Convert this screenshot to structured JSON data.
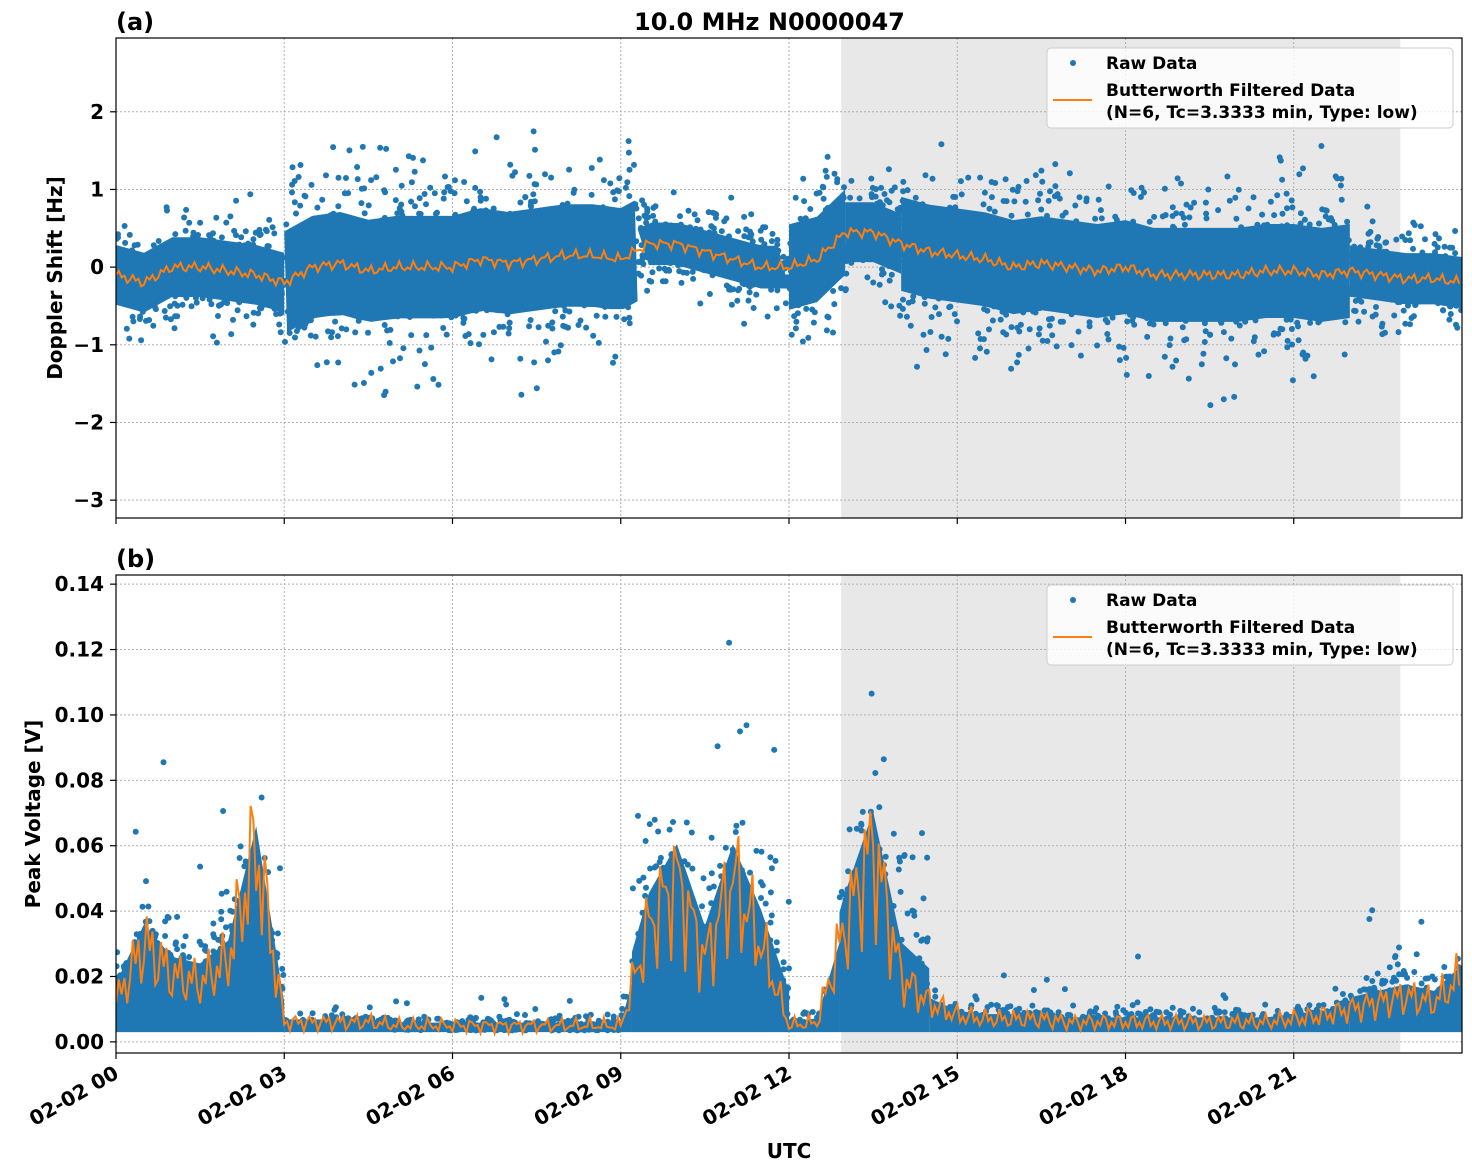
{
  "chart_data": [
    {
      "type": "scatter",
      "panel_label": "(a)",
      "title": "10.0 MHz N0000047",
      "xlabel": "",
      "ylabel": "Doppler Shift [Hz]",
      "xlim_hours": [
        0,
        24
      ],
      "ylim": [
        -3.23,
        2.95
      ],
      "yticks": [
        2,
        1,
        0,
        -1,
        -2,
        -3
      ],
      "ytick_labels": [
        "2",
        "1",
        "0",
        "−1",
        "−2",
        "−3"
      ],
      "grid": true,
      "shaded_region_hours": [
        12.93,
        22.9
      ],
      "legend_placement": "top-right",
      "legend": [
        "Raw Data",
        "Butterworth Filtered Data",
        "(N=6, Tc=3.3333 min, Type: low)"
      ],
      "raw_envelope": [
        {
          "from": 0,
          "to": 3,
          "spread": 0.7
        },
        {
          "from": 3,
          "to": 9.3,
          "spread": 1.2
        },
        {
          "from": 9.3,
          "to": 12,
          "spread": 0.5
        },
        {
          "from": 12,
          "to": 13,
          "spread": 1.0
        },
        {
          "from": 13,
          "to": 14,
          "spread": 0.7
        },
        {
          "from": 14,
          "to": 22,
          "spread": 1.1
        },
        {
          "from": 22,
          "to": 24,
          "spread": 0.6
        }
      ],
      "filtered_x_hours": [
        0,
        0.5,
        1,
        1.5,
        2,
        2.5,
        3,
        3.5,
        4,
        4.5,
        5,
        5.5,
        6,
        6.5,
        7,
        7.5,
        8,
        8.5,
        9,
        9.5,
        10,
        10.5,
        11,
        11.5,
        12,
        12.5,
        13,
        13.5,
        14,
        14.5,
        15,
        15.5,
        16,
        16.5,
        17,
        17.5,
        18,
        18.5,
        19,
        19.5,
        20,
        20.5,
        21,
        21.5,
        22,
        22.5,
        23,
        23.5,
        24
      ],
      "filtered_y": [
        -0.1,
        -0.2,
        0.0,
        0.0,
        -0.05,
        -0.1,
        -0.2,
        0.0,
        0.05,
        -0.05,
        0.0,
        0.0,
        0.0,
        0.1,
        0.05,
        0.1,
        0.15,
        0.15,
        0.1,
        0.3,
        0.3,
        0.2,
        0.1,
        0.0,
        0.0,
        0.1,
        0.45,
        0.45,
        0.3,
        0.2,
        0.15,
        0.1,
        0.0,
        0.05,
        0.0,
        -0.05,
        0.0,
        -0.1,
        -0.1,
        -0.1,
        -0.1,
        -0.05,
        -0.05,
        -0.1,
        -0.05,
        -0.1,
        -0.15,
        -0.15,
        -0.2
      ]
    },
    {
      "type": "scatter",
      "panel_label": "(b)",
      "xlabel": "UTC",
      "ylabel": "Peak Voltage [V]",
      "xlim_hours": [
        0,
        24
      ],
      "ylim": [
        -0.0034,
        0.1428
      ],
      "yticks": [
        0.14,
        0.12,
        0.1,
        0.08,
        0.06,
        0.04,
        0.02,
        0.0
      ],
      "ytick_labels": [
        "0.14",
        "0.12",
        "0.10",
        "0.08",
        "0.06",
        "0.04",
        "0.02",
        "0.00"
      ],
      "xticks_hours": [
        0,
        3,
        6,
        9,
        12,
        15,
        18,
        21
      ],
      "xtick_labels": [
        "02-02 00",
        "02-02 03",
        "02-02 06",
        "02-02 09",
        "02-02 12",
        "02-02 15",
        "02-02 18",
        "02-02 21"
      ],
      "grid": true,
      "shaded_region_hours": [
        12.93,
        22.9
      ],
      "legend_placement": "top-right",
      "legend": [
        "Raw Data",
        "Butterworth Filtered Data",
        "(N=6, Tc=3.3333 min, Type: low)"
      ],
      "raw_envelope": [
        {
          "from": 0,
          "to": 3,
          "spread": 0.02
        },
        {
          "from": 3,
          "to": 9.2,
          "spread": 0.003
        },
        {
          "from": 9.2,
          "to": 12,
          "spread": 0.035
        },
        {
          "from": 12,
          "to": 12.9,
          "spread": 0.004
        },
        {
          "from": 12.9,
          "to": 14.5,
          "spread": 0.035
        },
        {
          "from": 14.5,
          "to": 22,
          "spread": 0.005
        },
        {
          "from": 22,
          "to": 24,
          "spread": 0.012
        }
      ],
      "filtered_x_hours": [
        0,
        0.5,
        1,
        1.5,
        2,
        2.5,
        3,
        3.5,
        4,
        4.5,
        5,
        5.5,
        6,
        6.5,
        7,
        7.5,
        8,
        8.5,
        9,
        9.5,
        10,
        10.5,
        11,
        11.5,
        12,
        12.5,
        13,
        13.5,
        14,
        14.5,
        15,
        15.5,
        16,
        16.5,
        17,
        17.5,
        18,
        18.5,
        19,
        19.5,
        20,
        20.5,
        21,
        21.5,
        22,
        22.5,
        23,
        23.5,
        24
      ],
      "filtered_y": [
        0.012,
        0.03,
        0.02,
        0.018,
        0.025,
        0.06,
        0.006,
        0.006,
        0.006,
        0.006,
        0.005,
        0.005,
        0.005,
        0.005,
        0.005,
        0.005,
        0.005,
        0.005,
        0.005,
        0.035,
        0.05,
        0.025,
        0.05,
        0.03,
        0.005,
        0.006,
        0.035,
        0.06,
        0.02,
        0.012,
        0.008,
        0.007,
        0.007,
        0.007,
        0.006,
        0.006,
        0.006,
        0.006,
        0.006,
        0.006,
        0.006,
        0.006,
        0.007,
        0.008,
        0.01,
        0.012,
        0.014,
        0.012,
        0.02
      ]
    }
  ],
  "colors": {
    "raw": "#1f77b4",
    "filtered": "#ff7f0e",
    "shade": "#e8e8e8",
    "grid": "#b0b0b0"
  }
}
